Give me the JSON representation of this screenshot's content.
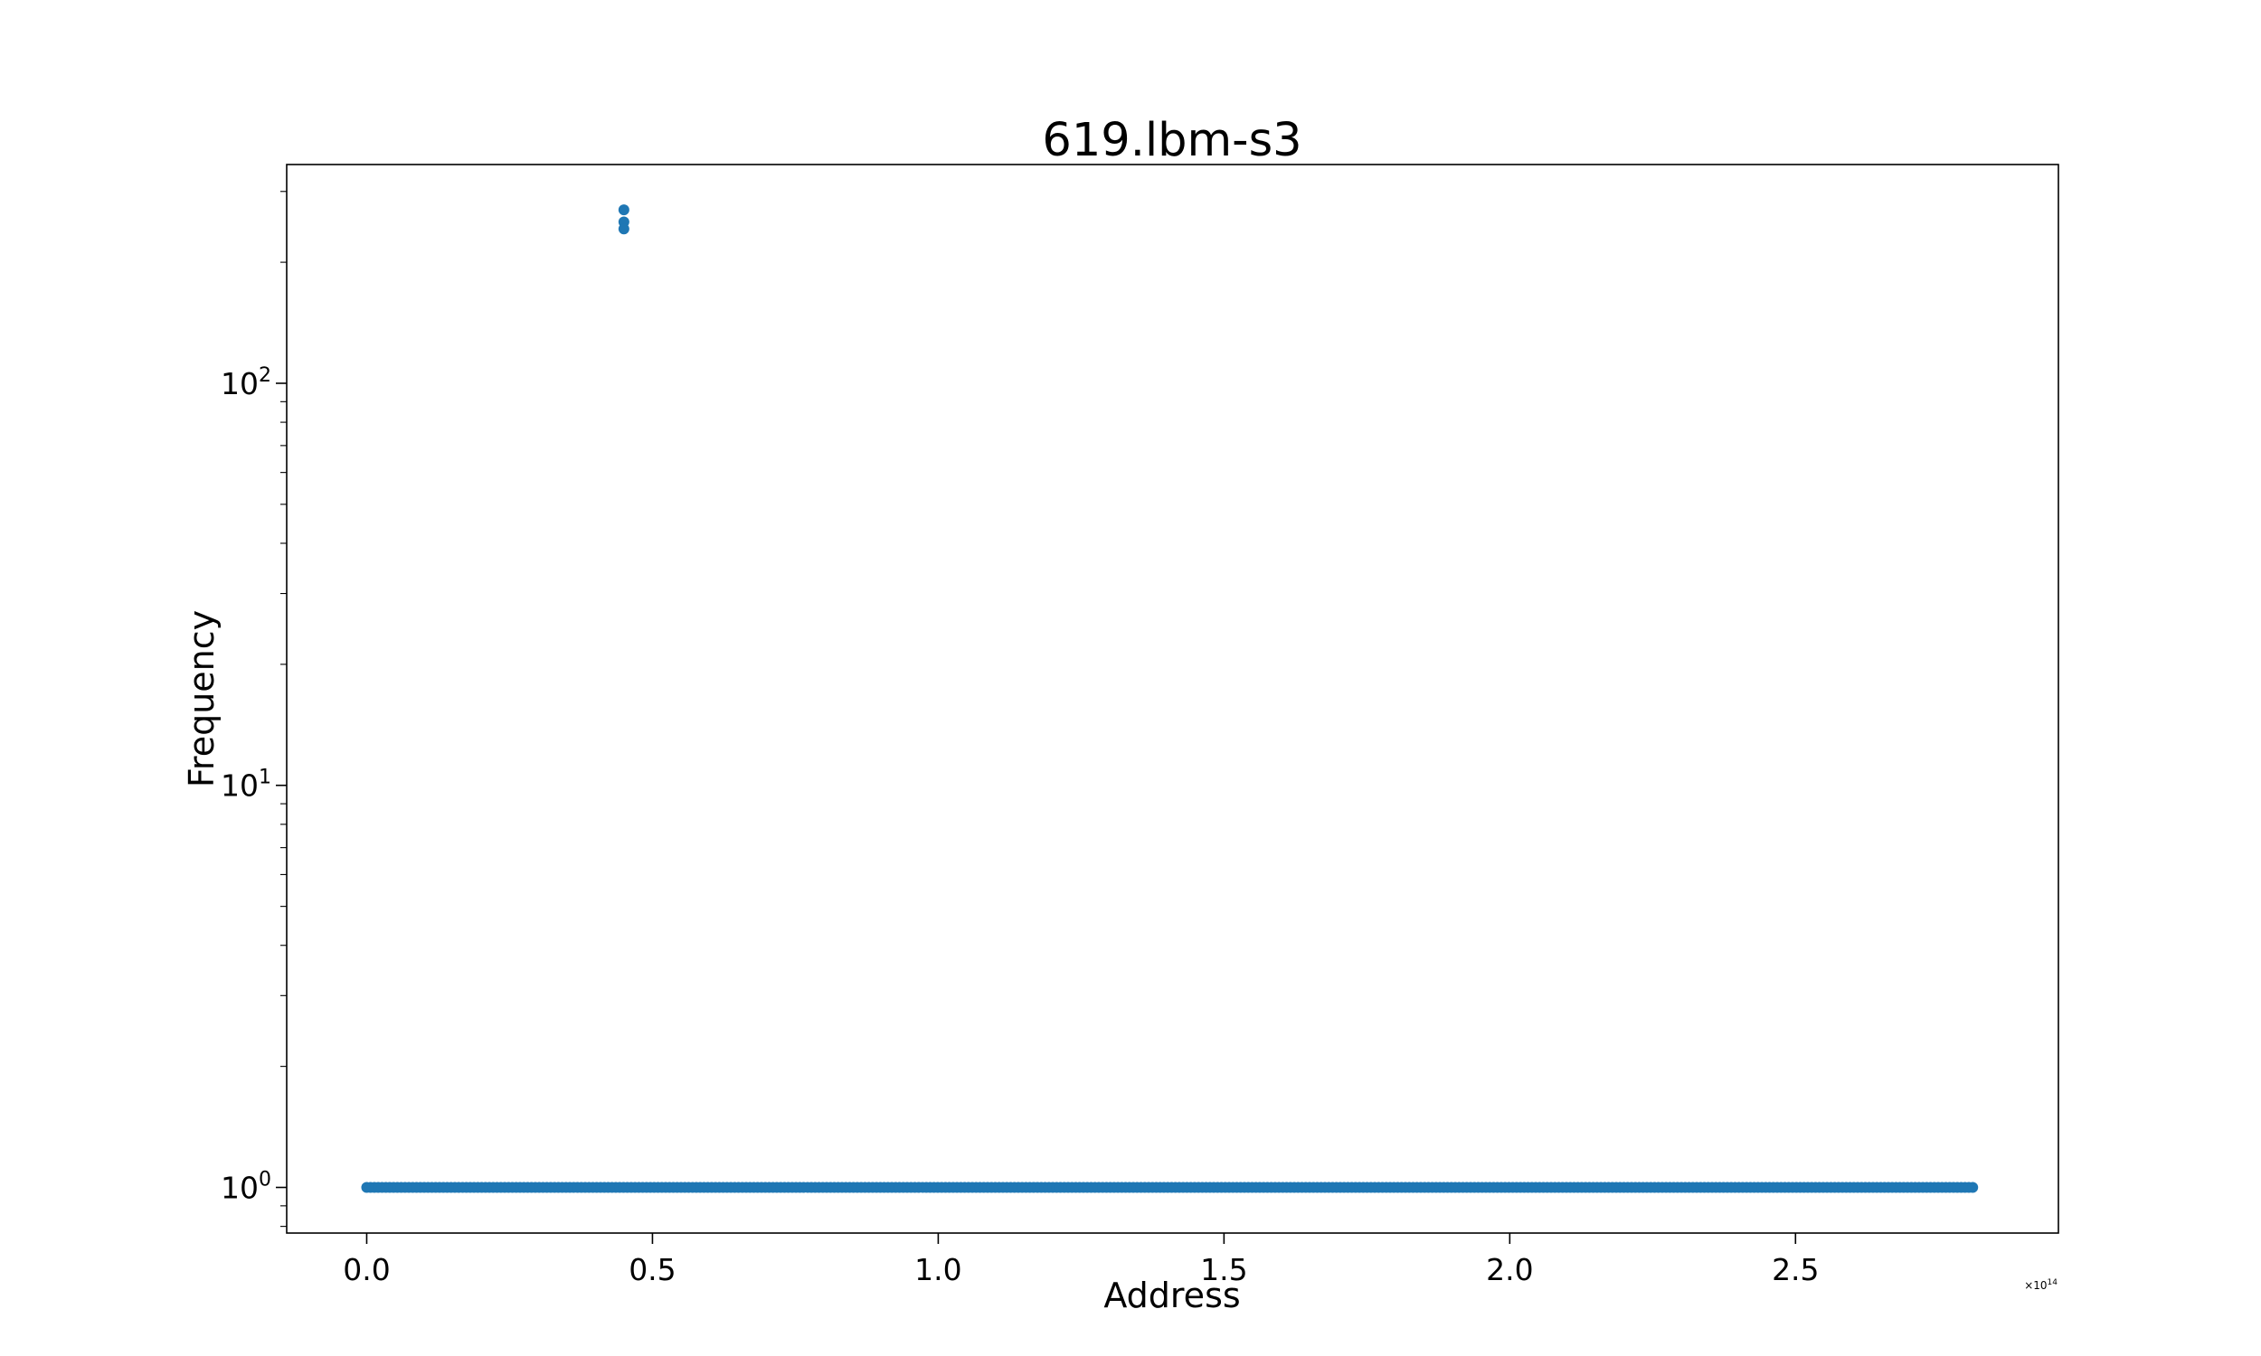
{
  "chart_data": {
    "type": "scatter",
    "title": "619.lbm-s3",
    "xlabel": "Address",
    "ylabel": "Frequency",
    "x_offset_label": {
      "base": "×10",
      "exponent": "14"
    },
    "xlim": [
      -0.14,
      2.96
    ],
    "ylim": [
      0.77,
      350
    ],
    "yscale": "log",
    "grid": false,
    "legend": "none",
    "color": "#1f77b4",
    "x_ticks": [
      {
        "value": 0.0,
        "label": "0.0"
      },
      {
        "value": 0.5,
        "label": "0.5"
      },
      {
        "value": 1.0,
        "label": "1.0"
      },
      {
        "value": 1.5,
        "label": "1.5"
      },
      {
        "value": 2.0,
        "label": "2.0"
      },
      {
        "value": 2.5,
        "label": "2.5"
      }
    ],
    "y_ticks": [
      {
        "value": 1,
        "base": "10",
        "exponent": "0"
      },
      {
        "value": 10,
        "base": "10",
        "exponent": "1"
      },
      {
        "value": 100,
        "base": "10",
        "exponent": "2"
      }
    ],
    "baseline": {
      "x_range": [
        0.0,
        2.81
      ],
      "y": 1
    },
    "outliers": [
      {
        "x": 0.45,
        "y": 270
      },
      {
        "x": 0.45,
        "y": 252
      },
      {
        "x": 0.45,
        "y": 242
      }
    ]
  }
}
